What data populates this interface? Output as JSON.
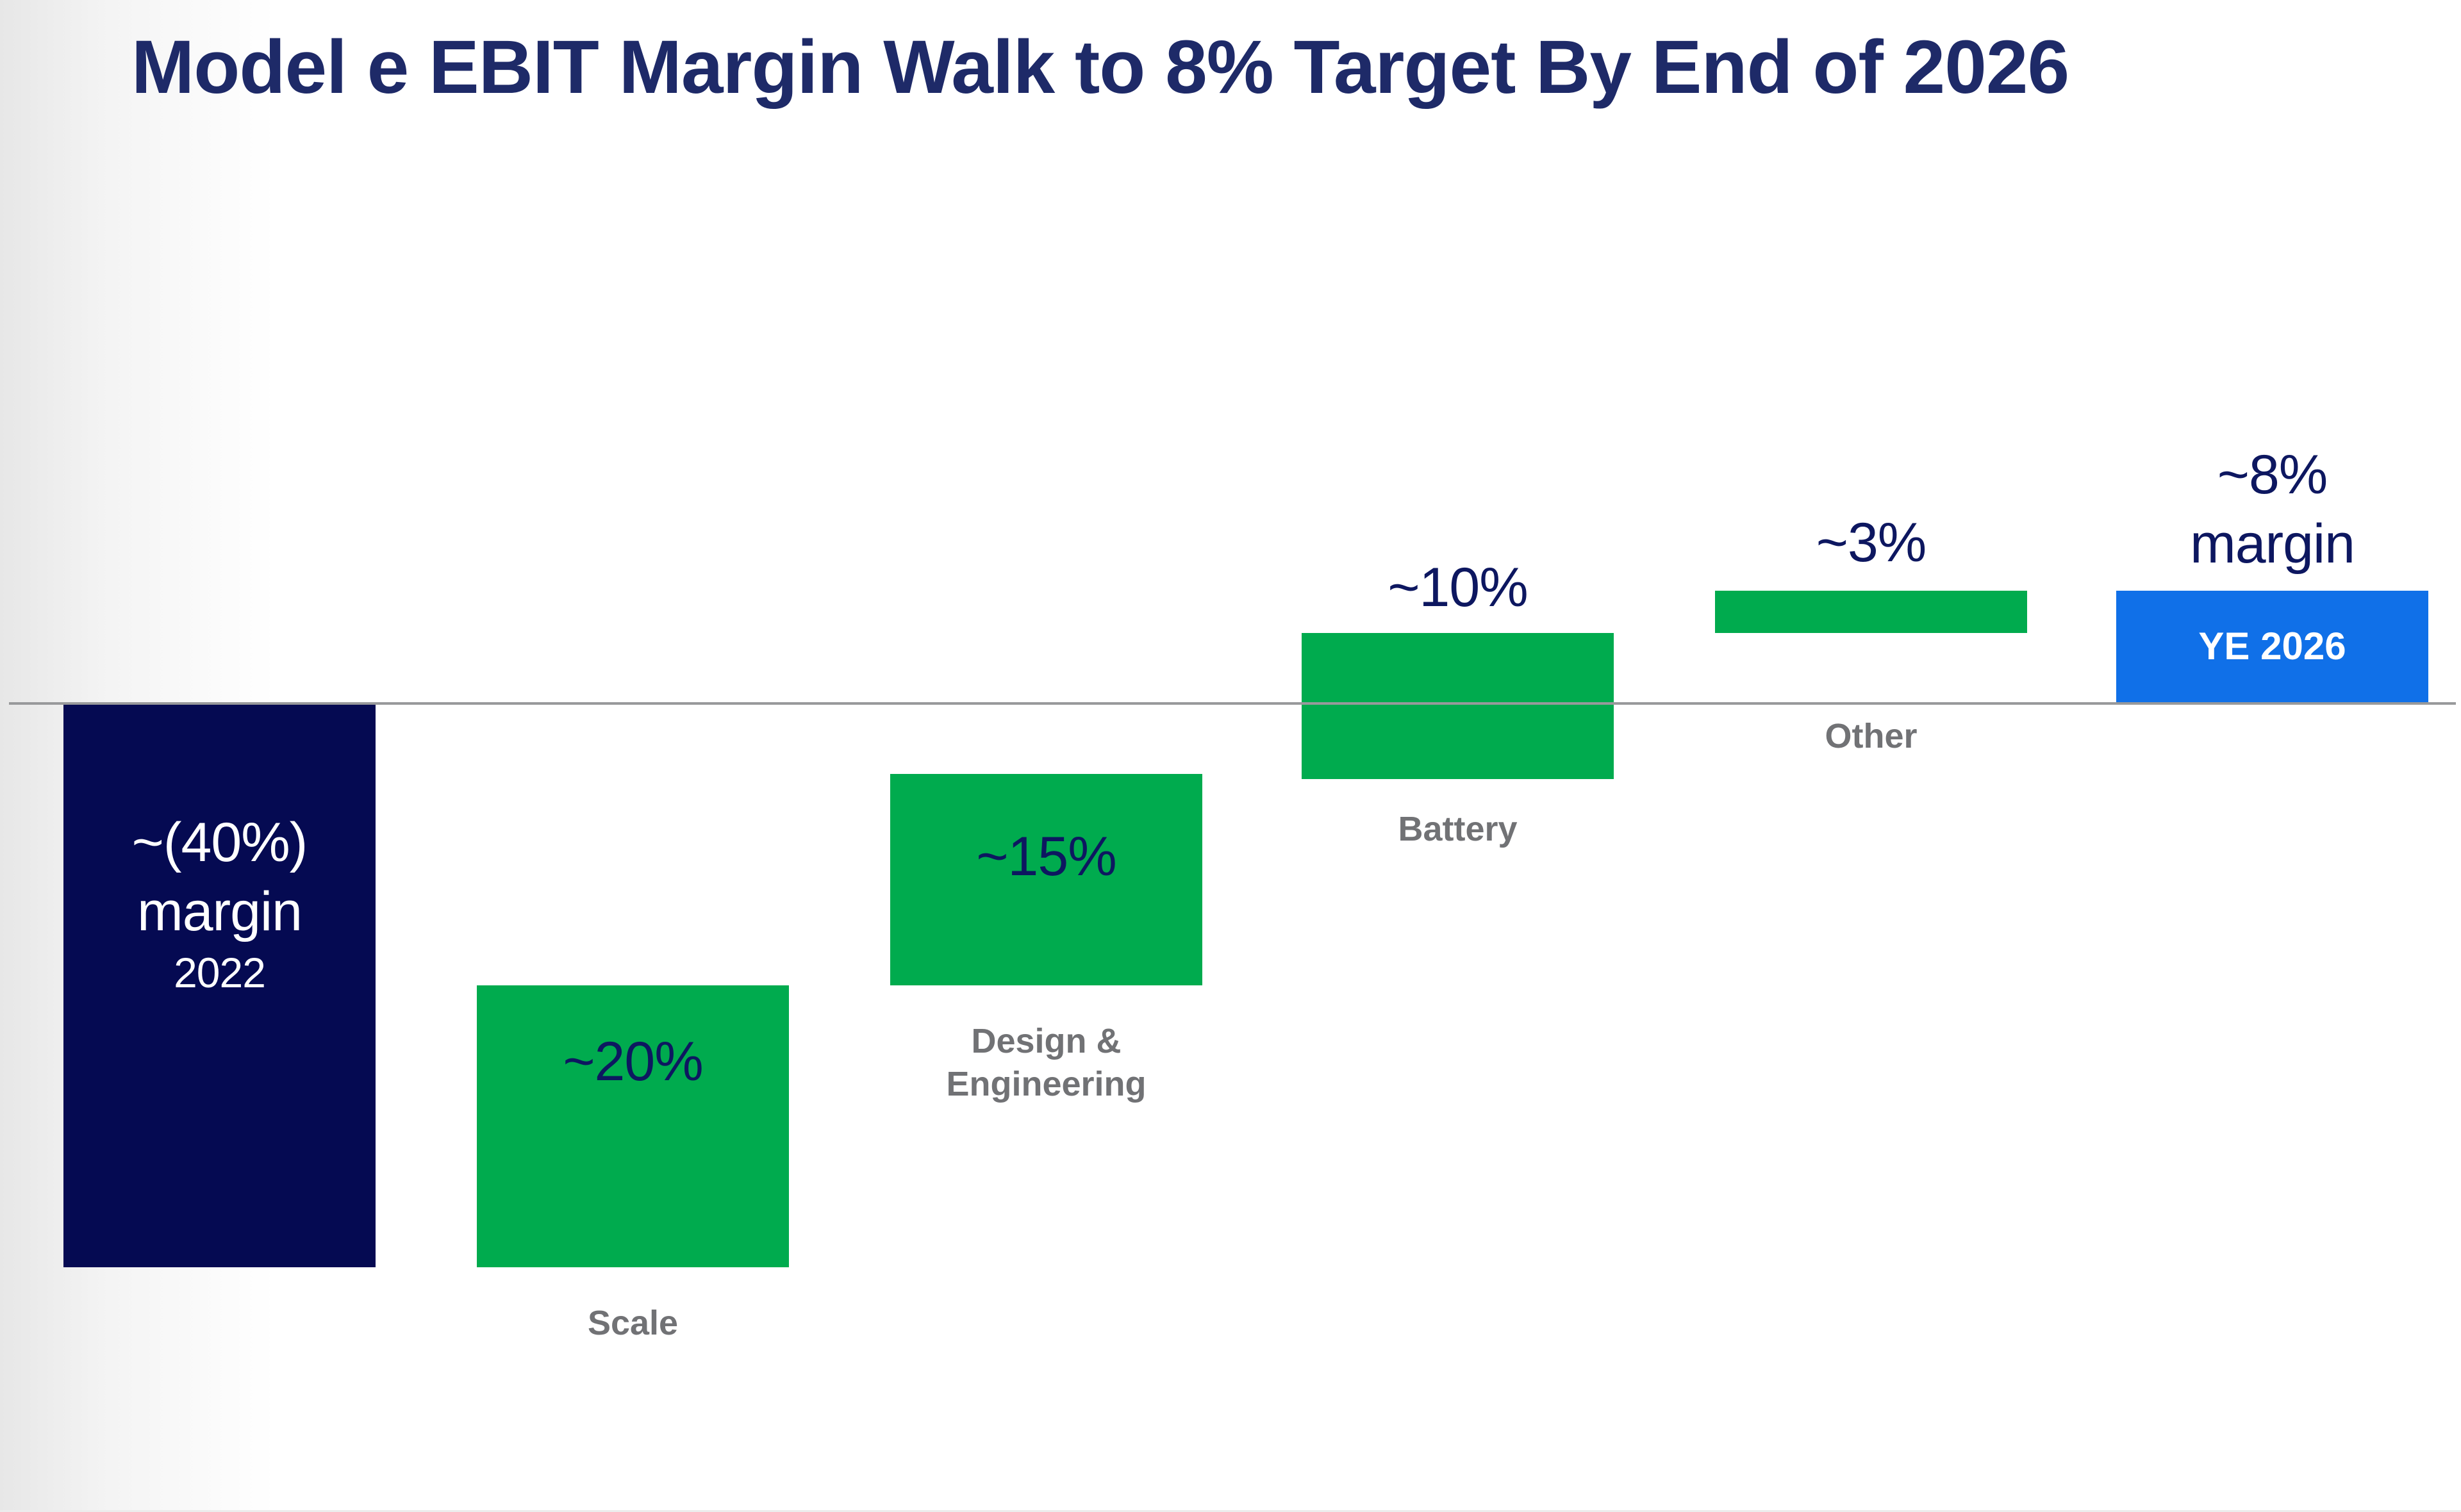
{
  "title": "Model e EBIT Margin Walk to 8% Target By End of 2026",
  "colors": {
    "title_navy": "#1e2a68",
    "value_navy": "#0d1760",
    "navy": "#050a52",
    "green": "#00ab4e",
    "blue": "#1070e8",
    "baseline_gray": "#98999b",
    "label_gray": "#717275",
    "white": "#ffffff"
  },
  "bars": [
    {
      "value_line1": "~(40%)",
      "value_line2": "margin",
      "value_line3": "2022"
    },
    {
      "value": "~20%",
      "category": "Scale"
    },
    {
      "value": "~15%",
      "category_line1": "Design &",
      "category_line2": "Engineering"
    },
    {
      "value": "~10%",
      "category": "Battery"
    },
    {
      "value": "~3%",
      "category": "Other"
    },
    {
      "value_line1": "~8%",
      "value_line2": "margin",
      "inside_label": "YE 2026"
    }
  ],
  "chart_data": {
    "type": "bar",
    "subtype": "waterfall",
    "title": "Model e EBIT Margin Walk to 8% Target By End of 2026",
    "categories": [
      "2022",
      "Scale",
      "Design & Engineering",
      "Battery",
      "Other",
      "YE 2026"
    ],
    "steps": [
      {
        "category": "2022",
        "label": "~(40%) margin",
        "delta_pct": -40,
        "bar_start_pct": 0,
        "bar_end_pct": -40,
        "color": "navy",
        "label_position": "inside"
      },
      {
        "category": "Scale",
        "label": "~20%",
        "delta_pct": 20,
        "bar_start_pct": -40,
        "bar_end_pct": -20,
        "color": "green",
        "label_position": "inside"
      },
      {
        "category": "Design & Engineering",
        "label": "~15%",
        "delta_pct": 15,
        "bar_start_pct": -20,
        "bar_end_pct": -5,
        "color": "green",
        "label_position": "inside"
      },
      {
        "category": "Battery",
        "label": "~10%",
        "delta_pct": 10,
        "bar_start_pct": -5,
        "bar_end_pct": 5,
        "color": "green",
        "label_position": "above"
      },
      {
        "category": "Other",
        "label": "~3%",
        "delta_pct": 3,
        "bar_start_pct": 5,
        "bar_end_pct": 8,
        "color": "green",
        "label_position": "above"
      },
      {
        "category": "YE 2026",
        "label": "~8% margin",
        "delta_pct": 8,
        "bar_start_pct": 0,
        "bar_end_pct": 8,
        "color": "blue",
        "label_position": "above",
        "is_total": true
      }
    ],
    "ylim_pct": [
      -40,
      8
    ],
    "baseline_pct": 0,
    "grid": false,
    "legend": false,
    "axis_labels_visible": false
  }
}
